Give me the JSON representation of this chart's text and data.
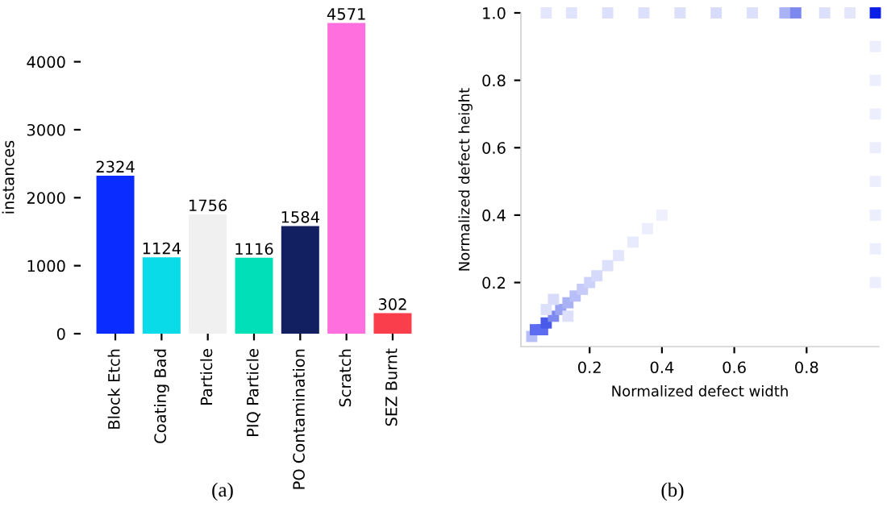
{
  "chart_data": [
    {
      "type": "bar",
      "ylabel": "instances",
      "categories": [
        "Block Etch",
        "Coating Bad",
        "Particle",
        "PIQ Particle",
        "PO Contamination",
        "Scratch",
        "SEZ Burnt"
      ],
      "values": [
        2324,
        1124,
        1756,
        1116,
        1584,
        4571,
        302
      ],
      "colors": [
        "#0a2cff",
        "#0adbe8",
        "#f0f0f0",
        "#00dfb8",
        "#121f60",
        "#ff6fde",
        "#fb3e4c"
      ],
      "ylim": [
        0,
        4600
      ],
      "yticks": [
        0,
        1000,
        2000,
        3000,
        4000
      ],
      "data_labels": true,
      "grid": false,
      "annotations": [
        "(a)"
      ]
    },
    {
      "type": "scatter",
      "xlabel": "Normalized defect width",
      "ylabel": "Normalized defect height",
      "marker": "square",
      "x": [
        0.04,
        0.05,
        0.07,
        0.08,
        0.1,
        0.12,
        0.14,
        0.16,
        0.18,
        0.2,
        0.22,
        0.25,
        0.28,
        0.32,
        0.36,
        0.4,
        0.1,
        0.14,
        0.08,
        0.08,
        0.15,
        0.25,
        0.35,
        0.45,
        0.55,
        0.65,
        0.74,
        0.77,
        0.85,
        0.92,
        0.99,
        0.99,
        0.99,
        0.99,
        0.99,
        0.99,
        0.99,
        0.99,
        0.99
      ],
      "values": [
        0.04,
        0.06,
        0.06,
        0.08,
        0.1,
        0.12,
        0.14,
        0.16,
        0.18,
        0.2,
        0.22,
        0.25,
        0.28,
        0.32,
        0.36,
        0.4,
        0.15,
        0.1,
        0.12,
        1.0,
        1.0,
        1.0,
        1.0,
        1.0,
        1.0,
        1.0,
        1.0,
        1.0,
        1.0,
        1.0,
        1.0,
        0.2,
        0.3,
        0.4,
        0.5,
        0.6,
        0.7,
        0.8,
        0.9
      ],
      "colors": [
        "#b8bff8",
        "#5d6cf0",
        "#5d6cf0",
        "#4a5ae8",
        "#7d88f0",
        "#9aa3f4",
        "#aab2f6",
        "#b8bff8",
        "#c5caf8",
        "#cdd2fa",
        "#d5d9fa",
        "#dde0fb",
        "#e3e6fc",
        "#e8eafd",
        "#eceefd",
        "#eff0fe",
        "#d8dcfa",
        "#dde0fb",
        "#dde0fb",
        "#e3e6fc",
        "#e0e3fc",
        "#dde0fb",
        "#dde0fb",
        "#dde0fb",
        "#d8dcfa",
        "#dde0fb",
        "#aab2f6",
        "#7d88f0",
        "#dde0fb",
        "#e3e6fc",
        "#0a1ee8",
        "#eceefd",
        "#eceefd",
        "#eceefd",
        "#eceefd",
        "#eceefd",
        "#eceefd",
        "#eceefd",
        "#eceefd"
      ],
      "xlim": [
        0.01,
        1.0
      ],
      "ylim": [
        0.01,
        1.0
      ],
      "xticks": [
        0.2,
        0.4,
        0.6,
        0.8
      ],
      "yticks": [
        0.2,
        0.4,
        0.6,
        0.8,
        {
          "value": 1.0,
          "label": "1.0"
        }
      ],
      "grid": false,
      "annotations": [
        "(b)"
      ]
    }
  ]
}
